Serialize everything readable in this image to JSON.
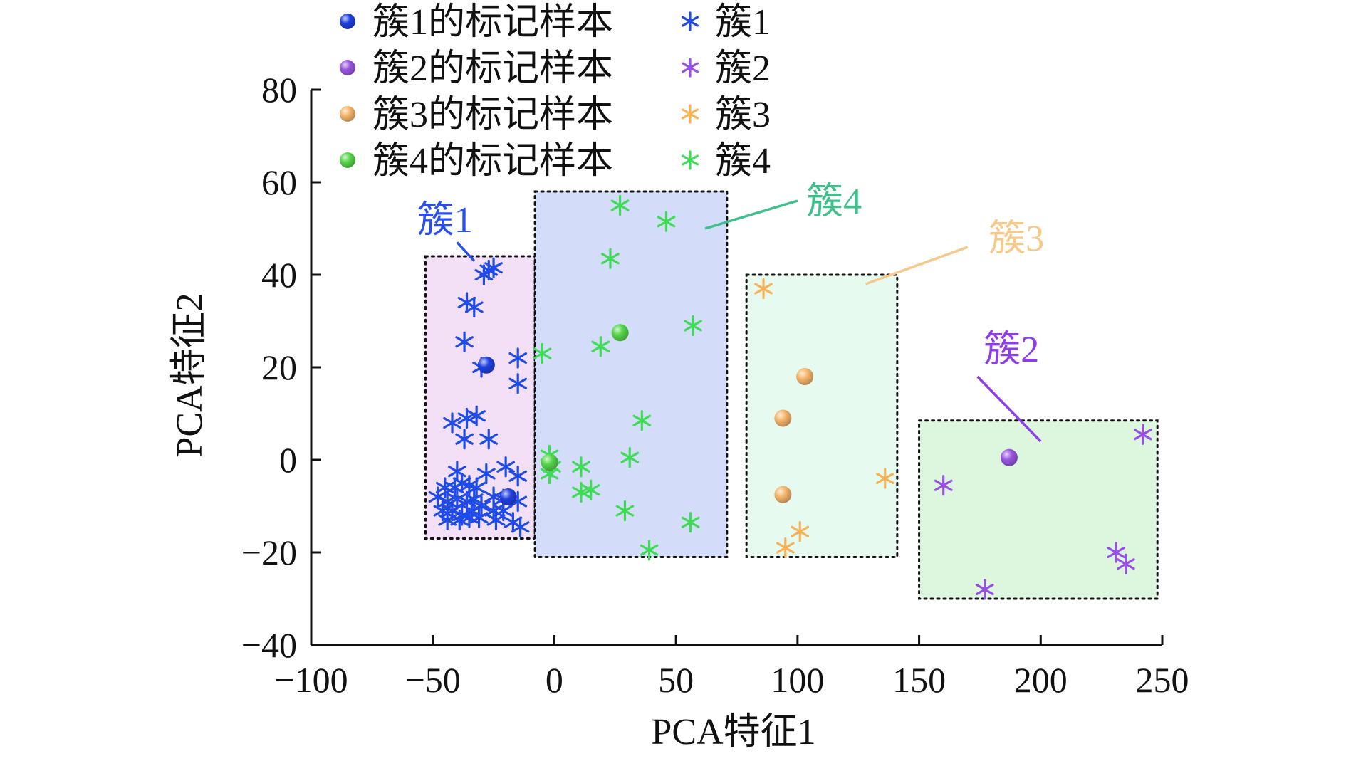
{
  "chart_data": {
    "type": "scatter",
    "xlabel": "PCA特征1",
    "ylabel": "PCA特征2",
    "xlim": [
      -100,
      250
    ],
    "ylim": [
      -40,
      80
    ],
    "xticks": [
      -100,
      -50,
      0,
      50,
      100,
      150,
      200,
      250
    ],
    "yticks": [
      -40,
      -20,
      0,
      20,
      40,
      60,
      80
    ],
    "xtick_labels": [
      "−100",
      "−50",
      "0",
      "50",
      "100",
      "150",
      "200",
      "250"
    ],
    "ytick_labels": [
      "−40",
      "−20",
      "0",
      "20",
      "40",
      "60",
      "80"
    ],
    "grid": false,
    "legend_position": "top-left",
    "regions": [
      {
        "cluster": "簇1",
        "x_range": [
          -53,
          -8
        ],
        "y_range": [
          -17,
          44
        ],
        "fill": "#f3e0f7"
      },
      {
        "cluster": "簇4",
        "x_range": [
          -8,
          71
        ],
        "y_range": [
          -21,
          58
        ],
        "fill": "#d3dcf9"
      },
      {
        "cluster": "簇3",
        "x_range": [
          79,
          141
        ],
        "y_range": [
          -21,
          40
        ],
        "fill": "#e6faef"
      },
      {
        "cluster": "簇2",
        "x_range": [
          150,
          248
        ],
        "y_range": [
          -30,
          8.5
        ],
        "fill": "#dcf7de"
      }
    ],
    "annotations": [
      {
        "text": "簇1",
        "color": "#2a4ff0",
        "label_at": [
          -45,
          52
        ],
        "line_from": [
          -40,
          47
        ],
        "line_to": [
          -33,
          43
        ]
      },
      {
        "text": "簇4",
        "color": "#3fbf8a",
        "label_at": [
          115,
          56
        ],
        "line_from": [
          100,
          56
        ],
        "line_to": [
          62,
          50
        ]
      },
      {
        "text": "簇3",
        "color": "#f6c98a",
        "label_at": [
          190,
          48
        ],
        "line_from": [
          170,
          46
        ],
        "line_to": [
          128,
          38
        ]
      },
      {
        "text": "簇2",
        "color": "#8f3de8",
        "label_at": [
          188,
          24
        ],
        "line_from": [
          174,
          18
        ],
        "line_to": [
          200,
          4
        ]
      }
    ],
    "series": [
      {
        "name": "簇1的标记样本",
        "marker": "sphere",
        "color": "#2040e0",
        "points": [
          [
            -28,
            20.5
          ],
          [
            -19,
            -8
          ]
        ]
      },
      {
        "name": "簇2的标记样本",
        "marker": "sphere",
        "color": "#9a55e0",
        "points": [
          [
            187,
            0.5
          ]
        ]
      },
      {
        "name": "簇3的标记样本",
        "marker": "sphere",
        "color": "#f5b56b",
        "points": [
          [
            103,
            18
          ],
          [
            94,
            9
          ],
          [
            94,
            -7.5
          ]
        ]
      },
      {
        "name": "簇4的标记样本",
        "marker": "sphere",
        "color": "#55d64a",
        "points": [
          [
            27,
            27.5
          ],
          [
            -2,
            -0.5
          ]
        ]
      },
      {
        "name": "簇1",
        "marker": "asterisk",
        "color": "#1f4be8",
        "points": [
          [
            -29,
            40
          ],
          [
            -27,
            41
          ],
          [
            -25,
            41.5
          ],
          [
            -36,
            34
          ],
          [
            -33,
            33
          ],
          [
            -37,
            25.5
          ],
          [
            -30,
            20
          ],
          [
            -15,
            22
          ],
          [
            -15,
            16.5
          ],
          [
            -42,
            8
          ],
          [
            -36,
            9
          ],
          [
            -32,
            9.5
          ],
          [
            -37,
            4.5
          ],
          [
            -27,
            4.5
          ],
          [
            -40,
            -2.5
          ],
          [
            -28,
            -3
          ],
          [
            -20,
            -1.5
          ],
          [
            -15,
            -3.5
          ],
          [
            -45,
            -6
          ],
          [
            -41,
            -6
          ],
          [
            -38,
            -5
          ],
          [
            -35,
            -5.5
          ],
          [
            -32,
            -6
          ],
          [
            -48,
            -8
          ],
          [
            -44,
            -9
          ],
          [
            -40,
            -8.5
          ],
          [
            -36,
            -9
          ],
          [
            -33,
            -8.5
          ],
          [
            -25,
            -8
          ],
          [
            -21,
            -8.5
          ],
          [
            -15,
            -9
          ],
          [
            -46,
            -11
          ],
          [
            -42,
            -11
          ],
          [
            -38,
            -12
          ],
          [
            -34,
            -11
          ],
          [
            -30,
            -10
          ],
          [
            -25,
            -11
          ],
          [
            -21,
            -11
          ],
          [
            -44,
            -13
          ],
          [
            -39,
            -13
          ],
          [
            -35,
            -12.5
          ],
          [
            -31,
            -12.5
          ],
          [
            -24,
            -13
          ],
          [
            -17,
            -13.5
          ],
          [
            -14,
            -14.5
          ]
        ]
      },
      {
        "name": "簇2",
        "marker": "asterisk",
        "color": "#9a4fe6",
        "points": [
          [
            242,
            5.5
          ],
          [
            160,
            -5.5
          ],
          [
            231,
            -20
          ],
          [
            235,
            -22.5
          ],
          [
            177,
            -28
          ]
        ]
      },
      {
        "name": "簇3",
        "marker": "asterisk",
        "color": "#f8b155",
        "points": [
          [
            86,
            37
          ],
          [
            136,
            -4
          ],
          [
            101,
            -15.5
          ],
          [
            95,
            -19
          ]
        ]
      },
      {
        "name": "簇4",
        "marker": "asterisk",
        "color": "#3edb55",
        "points": [
          [
            27,
            55
          ],
          [
            46,
            51.5
          ],
          [
            23,
            43.5
          ],
          [
            57,
            29
          ],
          [
            19,
            24.5
          ],
          [
            -5,
            23
          ],
          [
            36,
            8.5
          ],
          [
            -2,
            1
          ],
          [
            31,
            0.5
          ],
          [
            -1,
            -1.5
          ],
          [
            11,
            -1.5
          ],
          [
            -2,
            -3
          ],
          [
            11,
            -7
          ],
          [
            15,
            -6.5
          ],
          [
            29,
            -11
          ],
          [
            56,
            -13.5
          ],
          [
            39,
            -19.5
          ]
        ]
      }
    ]
  }
}
